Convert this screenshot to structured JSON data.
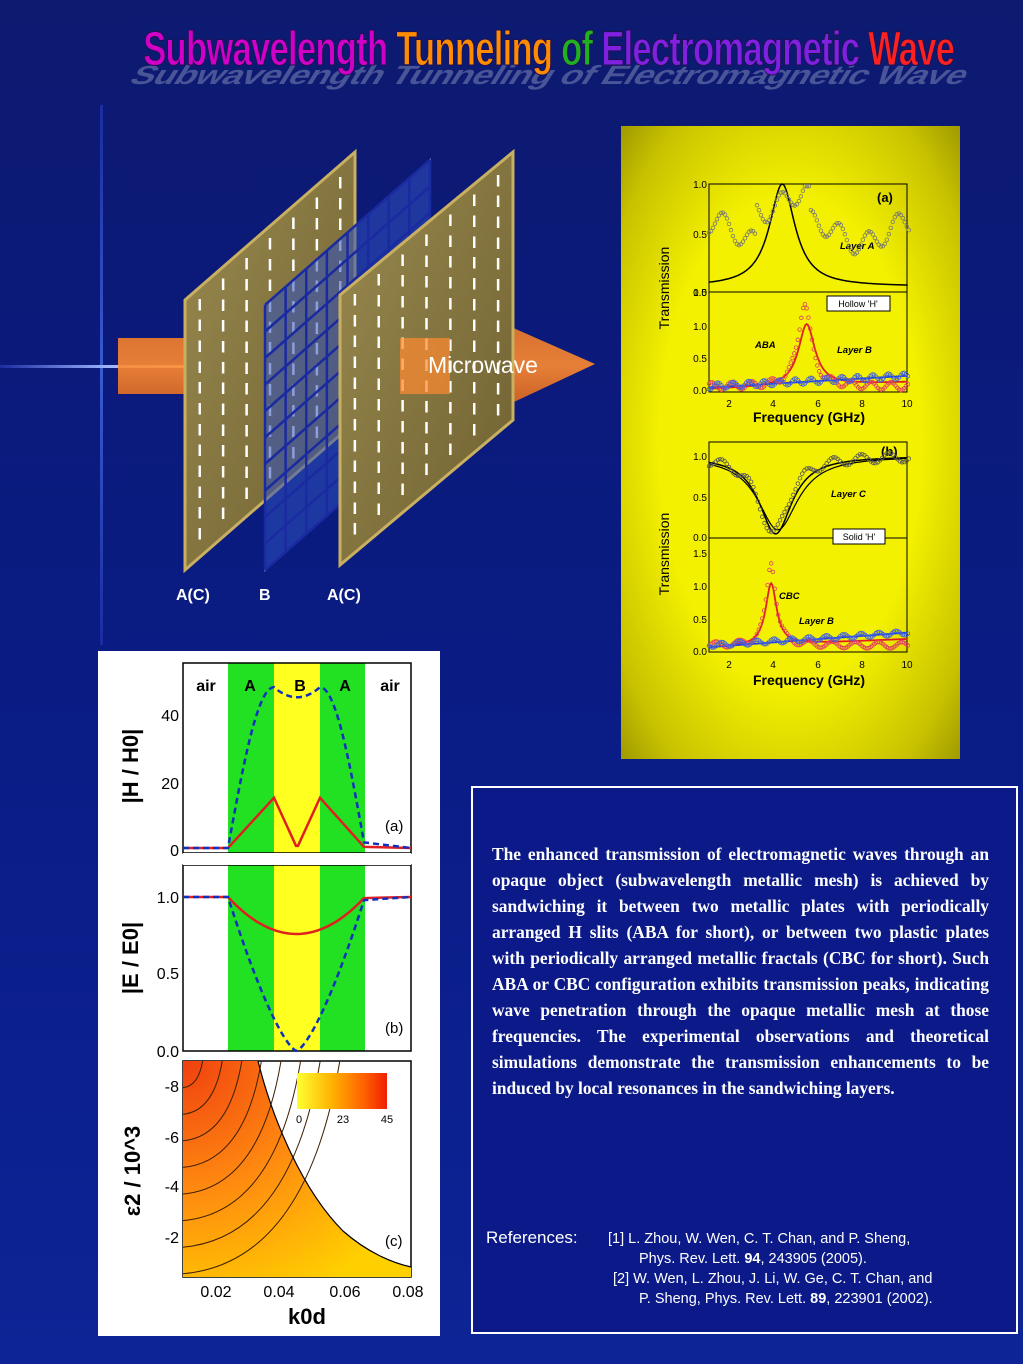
{
  "title": "Subwavelength Tunneling of Electromagnetic Wave",
  "title_colors": [
    "#d000c8",
    "#ff2020",
    "#ff8c00",
    "#e8e000",
    "#20b020",
    "#2060ff",
    "#8020e0"
  ],
  "diagram": {
    "layer_labels": [
      "A(C)",
      "B",
      "A(C)"
    ],
    "arrow_label": "Microwave",
    "slit_glyph": "I"
  },
  "transmission_figure": {
    "panel_a": {
      "label": "(a)",
      "top_curve": "Layer A",
      "bottom_curves": [
        "ABA",
        "Layer B"
      ],
      "legend_box": "Hollow 'H'",
      "top_ticks_y": [
        "1.0",
        "0.5",
        "0.0"
      ],
      "bottom_ticks_y": [
        "1.5",
        "1.0",
        "0.5",
        "0.0"
      ],
      "ticks_x": [
        "2",
        "4",
        "6",
        "8",
        "10"
      ],
      "ylabel": "Transmission",
      "xlabel": "Frequency (GHz)"
    },
    "panel_b": {
      "label": "(b)",
      "top_curve": "Layer C",
      "bottom_curves": [
        "CBC",
        "Layer B"
      ],
      "legend_box": "Solid 'H'",
      "top_ticks_y": [
        "1.0",
        "0.5",
        "0.0"
      ],
      "bottom_ticks_y": [
        "1.5",
        "1.0",
        "0.5",
        "0.0"
      ],
      "ticks_x": [
        "2",
        "4",
        "6",
        "8",
        "10"
      ],
      "ylabel": "Transmission",
      "xlabel": "Frequency (GHz)"
    }
  },
  "field_figure": {
    "region_labels": [
      "air",
      "A",
      "B",
      "A",
      "air"
    ],
    "panel_a": {
      "label": "(a)",
      "ticks_y": [
        "40",
        "20",
        "0"
      ],
      "ylabel": "|H / H0|"
    },
    "panel_b": {
      "label": "(b)",
      "ticks_y": [
        "1.0",
        "0.5",
        "0.0"
      ],
      "ylabel": "|E / E0|"
    },
    "panel_c": {
      "label": "(c)",
      "ticks_y": [
        "-8",
        "-6",
        "-4",
        "-2"
      ],
      "ticks_x": [
        "0.02",
        "0.04",
        "0.06",
        "0.08"
      ],
      "ylabel": "ε2 / 10^3",
      "xlabel": "k0d",
      "colorbar_ticks": [
        "0",
        "23",
        "45"
      ]
    }
  },
  "description": "The enhanced transmission of electromagnetic waves through an opaque object (subwavelength metallic mesh) is achieved by sandwiching it between two metallic plates with periodically arranged H slits (ABA for short), or between two plastic plates with periodically arranged metallic fractals (CBC for short).  Such ABA or CBC configuration  exhibits transmission peaks, indicating  wave penetration through the opaque metallic mesh at those frequencies. The experimental observations and theoretical simulations demonstrate the transmission enhancements to be induced by local resonances in the sandwiching layers.",
  "references": {
    "heading": "References:",
    "items": [
      {
        "line1": "[1] L.  Zhou, W.  Wen, C.  T. Chan, and P.  Sheng,",
        "line2_pre": "Phys.  Rev.  Lett.  ",
        "volume": "94",
        "line2_post": ", 243905 (2005)."
      },
      {
        "line1": "[2] W. Wen, L. Zhou, J. Li, W. Ge, C. T. Chan, and",
        "line2_pre": "P. Sheng,  Phys. Rev. Lett. ",
        "volume": "89",
        "line2_post": ", 223901 (2002)."
      }
    ]
  }
}
